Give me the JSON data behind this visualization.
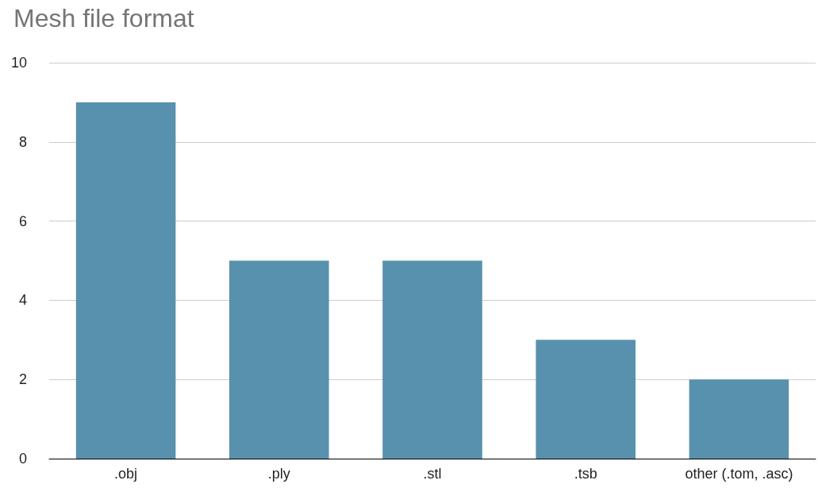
{
  "chart_data": {
    "type": "bar",
    "title": "Mesh file format",
    "categories": [
      ".obj",
      ".ply",
      ".stl",
      ".tsb",
      "other (.tom, .asc)"
    ],
    "values": [
      9,
      5,
      5,
      3,
      2
    ],
    "color": "#5891ad",
    "ylim": [
      0,
      10
    ],
    "yticks": [
      0,
      2,
      4,
      6,
      8,
      10
    ],
    "grid": "y"
  }
}
